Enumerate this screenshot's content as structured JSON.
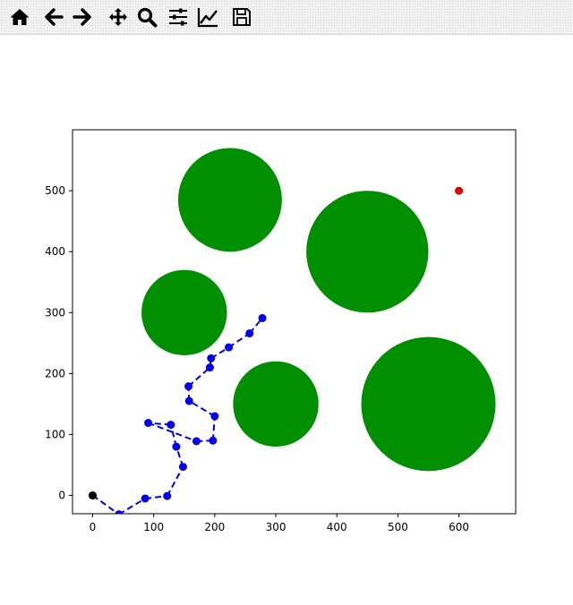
{
  "toolbar": {
    "buttons": [
      {
        "name": "home-button",
        "icon": "home-icon"
      },
      {
        "name": "back-button",
        "icon": "arrow-left-icon"
      },
      {
        "name": "forward-button",
        "icon": "arrow-right-icon"
      },
      {
        "name": "pan-button",
        "icon": "move-icon"
      },
      {
        "name": "zoom-button",
        "icon": "magnifier-icon"
      },
      {
        "name": "configure-subplots-button",
        "icon": "sliders-icon"
      },
      {
        "name": "edit-axis-button",
        "icon": "line-chart-icon"
      },
      {
        "name": "save-button",
        "icon": "floppy-disk-icon"
      }
    ]
  },
  "chart_data": {
    "type": "scatter",
    "title": "",
    "xlabel": "",
    "ylabel": "",
    "xlim": [
      -33,
      693
    ],
    "ylim": [
      -30,
      600
    ],
    "xticks": [
      "0",
      "100",
      "200",
      "300",
      "400",
      "500",
      "600"
    ],
    "yticks": [
      "0",
      "100",
      "200",
      "300",
      "400",
      "500"
    ],
    "obstacles": [
      {
        "x": 225,
        "y": 485,
        "r": 85
      },
      {
        "x": 150,
        "y": 300,
        "r": 70
      },
      {
        "x": 450,
        "y": 400,
        "r": 100
      },
      {
        "x": 300,
        "y": 150,
        "r": 70
      },
      {
        "x": 550,
        "y": 150,
        "r": 110
      }
    ],
    "obstacle_color": "#008f00",
    "start": {
      "x": 0,
      "y": 0
    },
    "start_color": "#000000",
    "goal": {
      "x": 600,
      "y": 500
    },
    "goal_color": "#e00000",
    "path_color": "#0000ee",
    "path_nodes": [
      {
        "x": 0,
        "y": 0
      },
      {
        "x": 43,
        "y": -31
      },
      {
        "x": 86,
        "y": -5
      },
      {
        "x": 122,
        "y": -1
      },
      {
        "x": 148,
        "y": 47
      },
      {
        "x": 137,
        "y": 80
      },
      {
        "x": 128,
        "y": 116
      },
      {
        "x": 91,
        "y": 119
      },
      {
        "x": 170,
        "y": 89
      },
      {
        "x": 197,
        "y": 90
      },
      {
        "x": 200,
        "y": 130
      },
      {
        "x": 158,
        "y": 155
      },
      {
        "x": 157,
        "y": 179
      },
      {
        "x": 192,
        "y": 210
      },
      {
        "x": 194,
        "y": 225
      },
      {
        "x": 223,
        "y": 243
      },
      {
        "x": 257,
        "y": 266
      },
      {
        "x": 278,
        "y": 291
      }
    ],
    "path_segments": [
      [
        0,
        1
      ],
      [
        1,
        2
      ],
      [
        2,
        3
      ],
      [
        3,
        4
      ],
      [
        4,
        5
      ],
      [
        5,
        6
      ],
      [
        6,
        7
      ],
      [
        7,
        8
      ],
      [
        8,
        9
      ],
      [
        9,
        10
      ],
      [
        10,
        11
      ],
      [
        11,
        12
      ],
      [
        12,
        13
      ],
      [
        13,
        14
      ],
      [
        14,
        15
      ],
      [
        15,
        16
      ],
      [
        16,
        17
      ]
    ]
  }
}
